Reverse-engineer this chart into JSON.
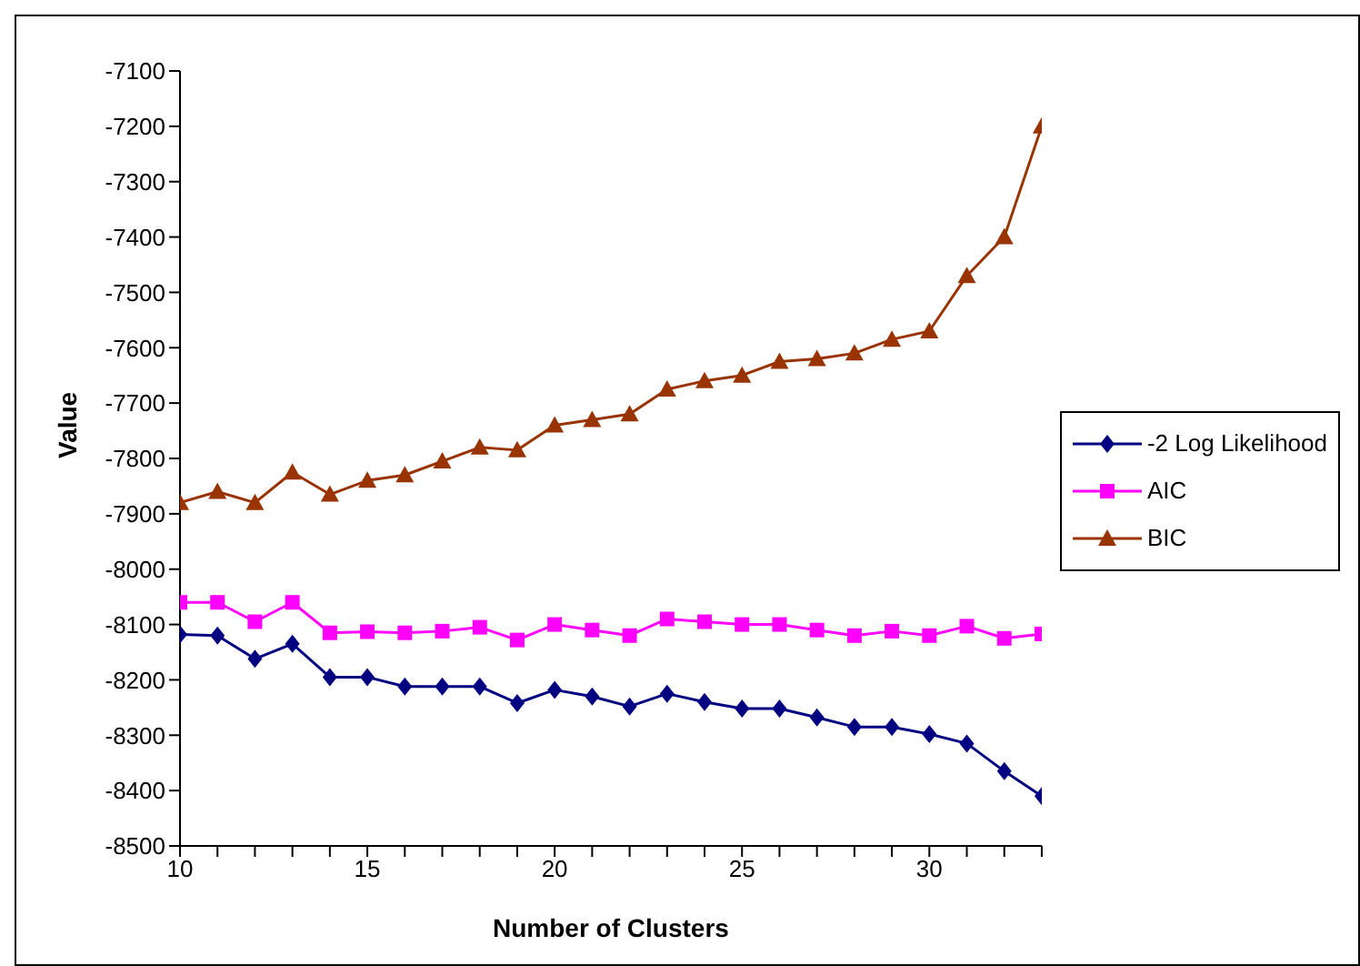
{
  "chart_data": {
    "type": "line",
    "xlabel": "Number of Clusters",
    "ylabel": "Value",
    "x": [
      10,
      11,
      12,
      13,
      14,
      15,
      16,
      17,
      18,
      19,
      20,
      21,
      22,
      23,
      24,
      25,
      26,
      27,
      28,
      29,
      30,
      31,
      32,
      33
    ],
    "series": [
      {
        "name": "-2 Log Likelihood",
        "color": "#000080",
        "marker": "diamond",
        "values": [
          -8118,
          -8120,
          -8162,
          -8135,
          -8195,
          -8195,
          -8212,
          -8212,
          -8212,
          -8242,
          -8218,
          -8230,
          -8248,
          -8225,
          -8240,
          -8252,
          -8252,
          -8268,
          -8285,
          -8285,
          -8298,
          -8315,
          -8365,
          -8410
        ]
      },
      {
        "name": "AIC",
        "color": "#ff00ff",
        "marker": "square",
        "values": [
          -8060,
          -8060,
          -8095,
          -8060,
          -8115,
          -8113,
          -8115,
          -8112,
          -8105,
          -8128,
          -8100,
          -8110,
          -8120,
          -8090,
          -8095,
          -8100,
          -8100,
          -8110,
          -8120,
          -8112,
          -8120,
          -8103,
          -8125,
          -8117
        ]
      },
      {
        "name": "BIC",
        "color": "#993300",
        "marker": "triangle",
        "values": [
          -7880,
          -7860,
          -7880,
          -7825,
          -7865,
          -7840,
          -7830,
          -7805,
          -7780,
          -7785,
          -7740,
          -7730,
          -7720,
          -7675,
          -7660,
          -7650,
          -7625,
          -7620,
          -7610,
          -7585,
          -7570,
          -7470,
          -7400,
          -7200
        ]
      }
    ],
    "xlim": [
      10,
      33
    ],
    "xticks": [
      10,
      {
        "value": 11,
        "label": null
      },
      {
        "value": 12,
        "label": null
      },
      {
        "value": 13,
        "label": null
      },
      {
        "value": 14,
        "label": null
      },
      15,
      {
        "value": 16,
        "label": null
      },
      {
        "value": 17,
        "label": null
      },
      {
        "value": 18,
        "label": null
      },
      {
        "value": 19,
        "label": null
      },
      20,
      {
        "value": 21,
        "label": null
      },
      {
        "value": 22,
        "label": null
      },
      {
        "value": 23,
        "label": null
      },
      {
        "value": 24,
        "label": null
      },
      25,
      {
        "value": 26,
        "label": null
      },
      {
        "value": 27,
        "label": null
      },
      {
        "value": 28,
        "label": null
      },
      {
        "value": 29,
        "label": null
      },
      30,
      {
        "value": 31,
        "label": null
      },
      {
        "value": 32,
        "label": null
      },
      {
        "value": 33,
        "label": null
      }
    ],
    "ylim": [
      -8500,
      -7100
    ],
    "yticks": [
      -8500,
      -8400,
      -8300,
      -8200,
      -8100,
      -8000,
      -7900,
      -7800,
      -7700,
      -7600,
      -7500,
      -7400,
      -7300,
      -7200,
      -7100
    ],
    "legend": "right",
    "grid": false
  }
}
